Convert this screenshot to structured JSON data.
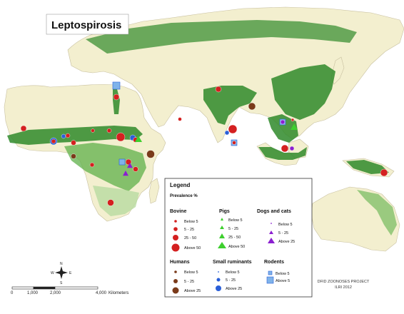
{
  "map": {
    "title": "Leptospirosis",
    "credit_line1": "DFID ZOONOSES PROJECT",
    "credit_line2": "ILRI 2012",
    "scale": {
      "ticks": [
        "0",
        "1,000",
        "2,000",
        "4,000"
      ],
      "unit": "Kilometers"
    },
    "compass": {
      "n": "N",
      "s": "S",
      "e": "E",
      "w": "W"
    },
    "colors": {
      "land": "#f3efcf",
      "dark_green": "#2f8a2a",
      "mid_green": "#5fb04a",
      "light_green": "#b8dba0",
      "border": "#c8c0a0",
      "bovine": "#d42020",
      "pigs": "#3ecf2e",
      "dogs_cats": "#8b1fd0",
      "humans": "#7a3a1a",
      "small_ruminants": "#2a5fd8",
      "rodents": "#7fb3ea"
    }
  },
  "legend": {
    "title": "Legend",
    "subtitle": "Prevalence %",
    "bovine": {
      "name": "Bovine",
      "items": [
        "Below 5",
        "5 - 25",
        "25 - 50",
        "Above 50"
      ]
    },
    "pigs": {
      "name": "Pigs",
      "items": [
        "Below 5",
        "5 - 25",
        "25 - 50",
        "Above 50"
      ]
    },
    "dogs_cats": {
      "name": "Dogs and cats",
      "items": [
        "Below 5",
        "5 - 25",
        "Above 25"
      ]
    },
    "humans": {
      "name": "Humans",
      "items": [
        "Below 5",
        "5 - 25",
        "Above 25"
      ]
    },
    "small_ruminants": {
      "name": "Small ruminants",
      "items": [
        "Below 5",
        "5 - 25",
        "Above 25"
      ]
    },
    "rodents": {
      "name": "Rodents",
      "items": [
        "Below 5",
        "Above 5"
      ]
    }
  }
}
